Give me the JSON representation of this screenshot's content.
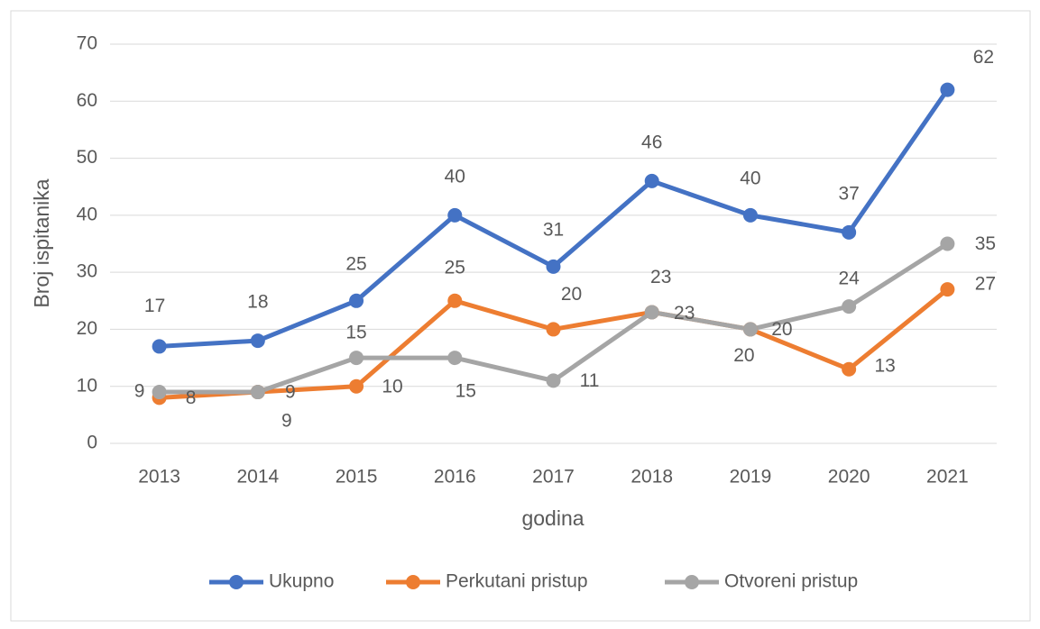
{
  "chart_data": {
    "type": "line",
    "categories": [
      "2013",
      "2014",
      "2015",
      "2016",
      "2017",
      "2018",
      "2019",
      "2020",
      "2021"
    ],
    "series": [
      {
        "name": "Ukupno",
        "color": "#4472c4",
        "values": [
          17,
          18,
          25,
          40,
          31,
          46,
          40,
          37,
          62
        ]
      },
      {
        "name": "Perkutani pristup",
        "color": "#ed7d31",
        "values": [
          8,
          9,
          10,
          25,
          20,
          23,
          20,
          13,
          27
        ]
      },
      {
        "name": "Otvoreni pristup",
        "color": "#a5a5a5",
        "values": [
          9,
          9,
          15,
          15,
          11,
          23,
          20,
          24,
          35
        ]
      }
    ],
    "y_label": "Broj ispitanika",
    "x_label": "godina",
    "ylim": [
      0,
      70
    ],
    "yticks": [
      0,
      10,
      20,
      30,
      40,
      50,
      60,
      70
    ],
    "grid": true,
    "legend": "bottom"
  }
}
